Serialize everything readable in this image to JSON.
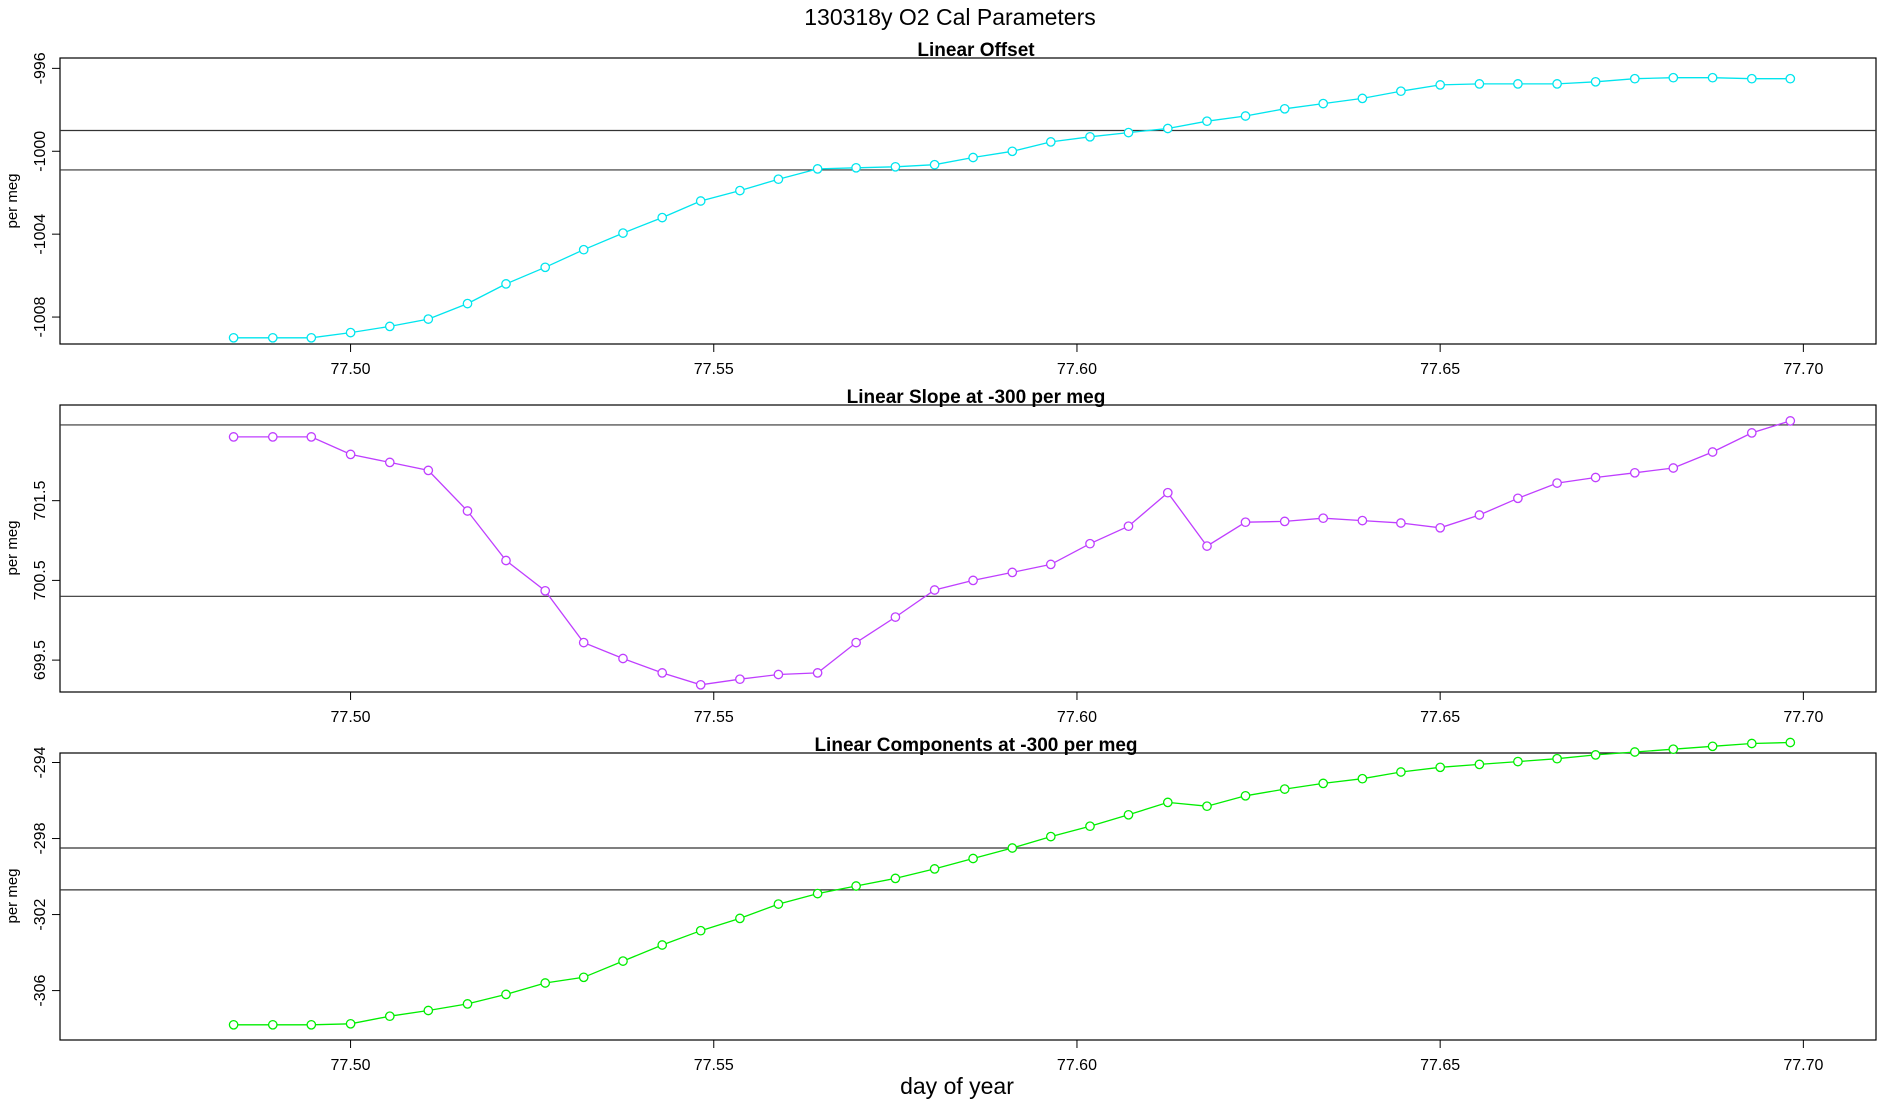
{
  "figure": {
    "title": "130318y    O2 Cal Parameters",
    "xlabel": "day of year"
  },
  "chart_data": [
    {
      "type": "line",
      "title": "Linear Offset",
      "xlabel": "",
      "ylabel": "per meg",
      "xlim": [
        77.46,
        77.71
      ],
      "ylim": [
        -1009.3,
        -995.5
      ],
      "x_ticks": [
        77.5,
        77.55,
        77.6,
        77.65,
        77.7
      ],
      "x_tick_labels": [
        "77.50",
        "77.55",
        "77.60",
        "77.65",
        "77.70"
      ],
      "y_ticks": [
        -996,
        -1000,
        -1004,
        -1008
      ],
      "y_tick_labels": [
        "-996",
        "-1000",
        "-1004",
        "-1008"
      ],
      "hlines": [
        -999.0,
        -1000.9
      ],
      "color": "#00e5ee",
      "series": [
        {
          "x": [
            77.4839,
            77.4893,
            77.4946,
            77.5,
            77.5054,
            77.5107,
            77.5161,
            77.5214,
            77.5268,
            77.5321,
            77.5375,
            77.5429,
            77.5482,
            77.5536,
            77.5589,
            77.5643,
            77.5696,
            77.575,
            77.5804,
            77.5857,
            77.5911,
            77.5964,
            77.6018,
            77.6071,
            77.6125,
            77.6179,
            77.6232,
            77.6286,
            77.6339,
            77.6393,
            77.6446,
            77.65,
            77.6554,
            77.6607,
            77.6661,
            77.6714,
            77.6768,
            77.6821,
            77.6875,
            77.6929,
            77.6982
          ],
          "values": [
            -1009.0,
            -1009.0,
            -1009.0,
            -1008.75,
            -1008.45,
            -1008.1,
            -1007.35,
            -1006.4,
            -1005.6,
            -1004.75,
            -1003.95,
            -1003.2,
            -1002.4,
            -1001.9,
            -1001.35,
            -1000.85,
            -1000.8,
            -1000.75,
            -1000.65,
            -1000.3,
            -1000.0,
            -999.55,
            -999.3,
            -999.1,
            -998.9,
            -998.55,
            -998.3,
            -997.95,
            -997.7,
            -997.45,
            -997.1,
            -996.8,
            -996.75,
            -996.75,
            -996.75,
            -996.65,
            -996.5,
            -996.45,
            -996.45,
            -996.5,
            -996.5
          ]
        }
      ]
    },
    {
      "type": "line",
      "title": "Linear Slope at -300 per meg",
      "xlabel": "",
      "ylabel": "per meg",
      "xlim": [
        77.46,
        77.71
      ],
      "ylim": [
        699.1,
        702.7
      ],
      "x_ticks": [
        77.5,
        77.55,
        77.6,
        77.65,
        77.7
      ],
      "x_tick_labels": [
        "77.50",
        "77.55",
        "77.60",
        "77.65",
        "77.70"
      ],
      "y_ticks": [
        701.5,
        700.5,
        699.5
      ],
      "y_tick_labels": [
        "701.5",
        "700.5",
        "699.5"
      ],
      "hlines": [
        702.45,
        700.3
      ],
      "color": "#bf3eff",
      "series": [
        {
          "x": [
            77.4839,
            77.4893,
            77.4946,
            77.5,
            77.5054,
            77.5107,
            77.5161,
            77.5214,
            77.5268,
            77.5321,
            77.5375,
            77.5429,
            77.5482,
            77.5536,
            77.5589,
            77.5643,
            77.5696,
            77.575,
            77.5804,
            77.5857,
            77.5911,
            77.5964,
            77.6018,
            77.6071,
            77.6125,
            77.6179,
            77.6232,
            77.6286,
            77.6339,
            77.6393,
            77.6446,
            77.65,
            77.6554,
            77.6607,
            77.6661,
            77.6714,
            77.6768,
            77.6821,
            77.6875,
            77.6929,
            77.6982
          ],
          "values": [
            702.3,
            702.3,
            702.3,
            702.08,
            701.98,
            701.88,
            701.37,
            700.75,
            700.37,
            699.72,
            699.52,
            699.34,
            699.19,
            699.26,
            699.32,
            699.34,
            699.72,
            700.04,
            700.38,
            700.5,
            700.6,
            700.7,
            700.96,
            701.18,
            701.6,
            700.93,
            701.23,
            701.24,
            701.28,
            701.25,
            701.22,
            701.16,
            701.32,
            701.53,
            701.72,
            701.79,
            701.85,
            701.91,
            702.11,
            702.35,
            702.5
          ]
        }
      ]
    },
    {
      "type": "line",
      "title": "Linear Components at -300 per meg",
      "xlabel": "",
      "ylabel": "per meg",
      "xlim": [
        77.46,
        77.71
      ],
      "ylim": [
        -308.6,
        -293.5
      ],
      "x_ticks": [
        77.5,
        77.55,
        77.6,
        77.65,
        77.7
      ],
      "x_tick_labels": [
        "77.50",
        "77.55",
        "77.60",
        "77.65",
        "77.70"
      ],
      "y_ticks": [
        -294,
        -298,
        -302,
        -306
      ],
      "y_tick_labels": [
        "-294",
        "-298",
        "-302",
        "-306"
      ],
      "hlines": [
        -298.5,
        -300.7
      ],
      "color": "#00ee00",
      "series": [
        {
          "x": [
            77.4839,
            77.4893,
            77.4946,
            77.5,
            77.5054,
            77.5107,
            77.5161,
            77.5214,
            77.5268,
            77.5321,
            77.5375,
            77.5429,
            77.5482,
            77.5536,
            77.5589,
            77.5643,
            77.5696,
            77.575,
            77.5804,
            77.5857,
            77.5911,
            77.5964,
            77.6018,
            77.6071,
            77.6125,
            77.6179,
            77.6232,
            77.6286,
            77.6339,
            77.6393,
            77.6446,
            77.65,
            77.6554,
            77.6607,
            77.6661,
            77.6714,
            77.6768,
            77.6821,
            77.6875,
            77.6929,
            77.6982
          ],
          "values": [
            -307.8,
            -307.8,
            -307.8,
            -307.75,
            -307.35,
            -307.05,
            -306.7,
            -306.2,
            -305.6,
            -305.3,
            -304.45,
            -303.6,
            -302.85,
            -302.2,
            -301.45,
            -300.9,
            -300.5,
            -300.1,
            -299.6,
            -299.05,
            -298.5,
            -297.9,
            -297.35,
            -296.75,
            -296.1,
            -296.3,
            -295.75,
            -295.4,
            -295.1,
            -294.85,
            -294.5,
            -294.25,
            -294.1,
            -293.95,
            -293.8,
            -293.6,
            -293.45,
            -293.3,
            -293.15,
            -293.0,
            -292.95
          ]
        }
      ]
    }
  ]
}
